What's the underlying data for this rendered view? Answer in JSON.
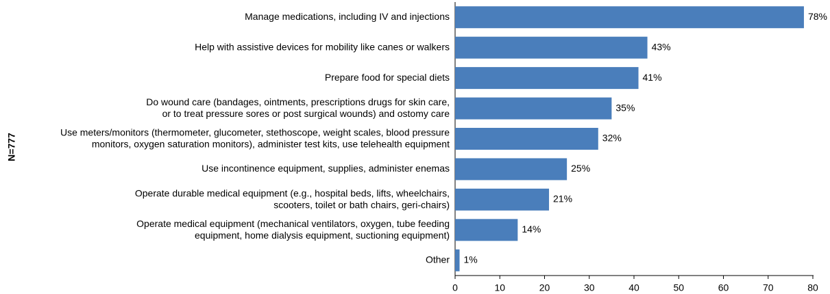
{
  "chart_data": {
    "type": "bar",
    "orientation": "horizontal",
    "y_axis_label": "N=777",
    "categories": [
      "Manage medications, including IV and injections",
      "Help with assistive devices for mobility like canes or walkers",
      "Prepare food for special diets",
      "Do wound care (bandages, ointments, prescriptions drugs for skin care,\nor to treat pressure sores or post surgical wounds) and ostomy care",
      "Use meters/monitors (thermometer, glucometer, stethoscope, weight scales, blood pressure\nmonitors, oxygen saturation monitors), administer test kits, use telehealth equipment",
      "Use incontinence equipment, supplies, administer enemas",
      "Operate durable medical equipment (e.g., hospital beds, lifts, wheelchairs,\nscooters, toilet or bath chairs, geri-chairs)",
      "Operate medical equipment (mechanical ventilators, oxygen, tube feeding\nequipment, home dialysis equipment, suctioning equipment)",
      "Other"
    ],
    "values": [
      78,
      43,
      41,
      35,
      32,
      25,
      21,
      14,
      1
    ],
    "value_labels": [
      "78%",
      "43%",
      "41%",
      "35%",
      "32%",
      "25%",
      "21%",
      "14%",
      "1%"
    ],
    "color": "#4a7ebb",
    "xlim": [
      0,
      80
    ],
    "xticks": [
      0,
      10,
      20,
      30,
      40,
      50,
      60,
      70,
      80
    ],
    "grid": false
  }
}
